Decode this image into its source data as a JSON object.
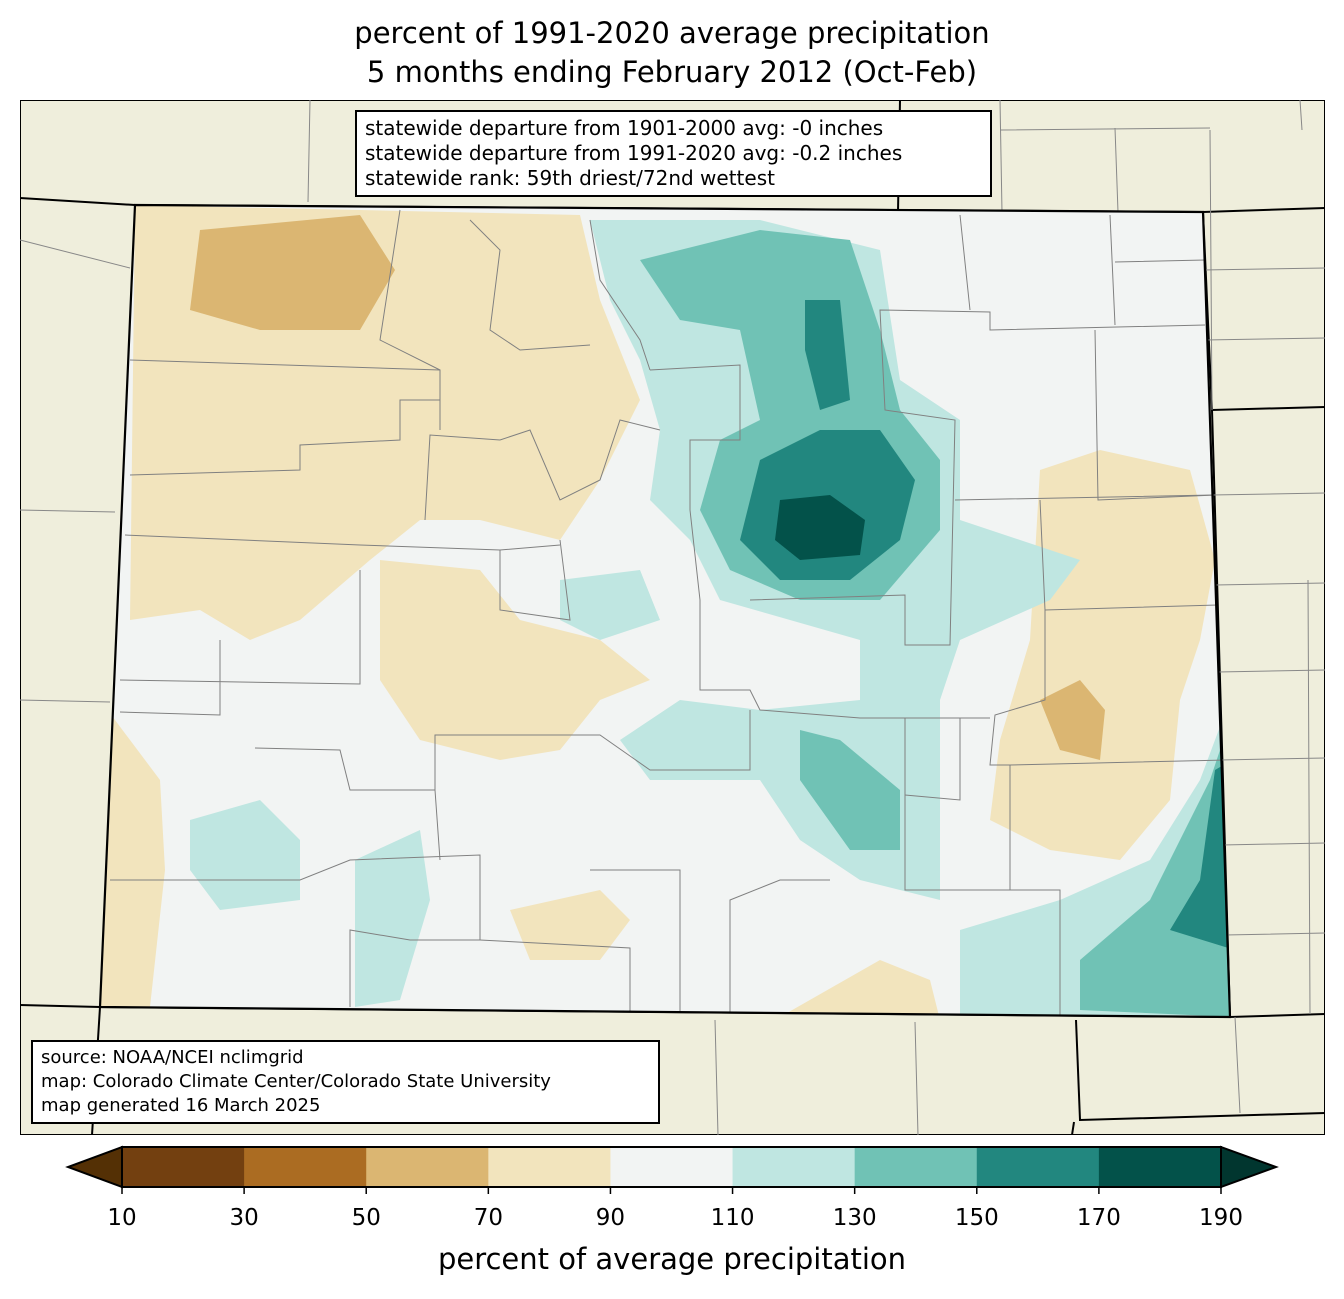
{
  "title": {
    "line1": "percent of 1991-2020 average precipitation",
    "line2": "5 months ending February 2012 (Oct-Feb)"
  },
  "stats": {
    "line1": "statewide departure from 1901-2000 avg: -0 inches",
    "line2": "statewide departure from 1991-2020 avg: -0.2 inches",
    "line3": "statewide rank: 59th driest/72nd wettest"
  },
  "source": {
    "line1": "source: NOAA/NCEI nclimgrid",
    "line2": "map: Colorado Climate Center/Colorado State University",
    "line3": "map generated 16 March 2025"
  },
  "colorbar": {
    "label": "percent of average precipitation",
    "ticks": [
      "10",
      "30",
      "50",
      "70",
      "90",
      "110",
      "130",
      "150",
      "170",
      "190"
    ],
    "colors": [
      "#734010",
      "#ab6c22",
      "#dbb672",
      "#f2e4bd",
      "#f2f4f3",
      "#bfe6e1",
      "#70c2b5",
      "#22877f",
      "#03524a"
    ],
    "under_color": "#543005",
    "over_color": "#01362f"
  },
  "colors": {
    "land": "#efeedc",
    "border": "#000000",
    "county": "#808080"
  }
}
